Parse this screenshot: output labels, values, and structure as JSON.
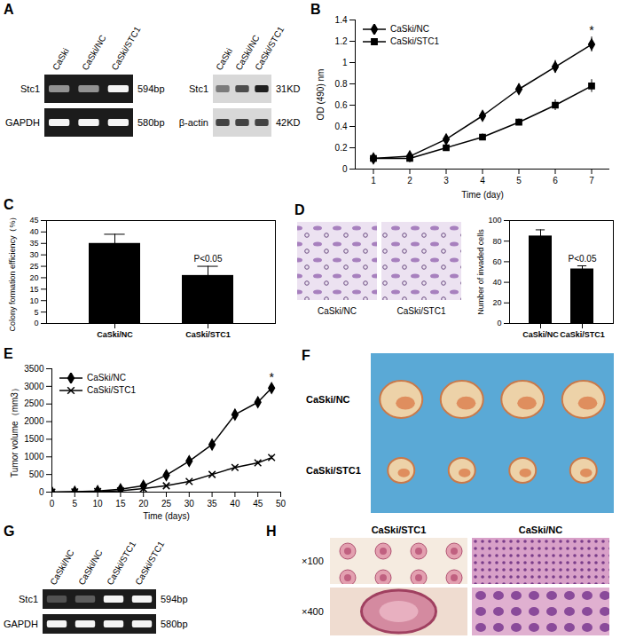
{
  "chart_data": [
    {
      "panel": "B",
      "type": "line",
      "x": [
        1,
        2,
        3,
        4,
        5,
        6,
        7
      ],
      "series": [
        {
          "name": "CaSki/NC",
          "color": "#000000",
          "marker": "diamond",
          "values": [
            0.1,
            0.12,
            0.28,
            0.5,
            0.75,
            0.96,
            1.17
          ],
          "errors": [
            0.01,
            0.02,
            0.03,
            0.04,
            0.05,
            0.06,
            0.07
          ]
        },
        {
          "name": "CaSki/STC1",
          "color": "#000000",
          "marker": "square",
          "values": [
            0.1,
            0.1,
            0.2,
            0.3,
            0.44,
            0.6,
            0.78
          ],
          "errors": [
            0.01,
            0.02,
            0.02,
            0.03,
            0.03,
            0.05,
            0.06
          ]
        }
      ],
      "xlabel": "Time (day)",
      "ylabel": "OD (490) nm",
      "xlim": [
        0.5,
        7.5
      ],
      "xticks": [
        1,
        2,
        3,
        4,
        5,
        6,
        7
      ],
      "ylim": [
        0,
        1.4
      ],
      "yticks": [
        0,
        0.2,
        0.4,
        0.6,
        0.8,
        1,
        1.2,
        1.4
      ],
      "legend": "upper left",
      "annotations": [
        {
          "text": "*",
          "x": 7
        }
      ]
    },
    {
      "panel": "C",
      "type": "bar",
      "categories": [
        "CaSki/NC",
        "CaSki/STC1"
      ],
      "values": [
        35,
        21
      ],
      "errors": [
        4,
        4
      ],
      "color": "#000000",
      "ylabel": "Colony formation efficiency（%）",
      "ylim": [
        0,
        45
      ],
      "yticks": [
        0,
        5,
        10,
        15,
        20,
        25,
        30,
        35,
        40,
        45
      ],
      "annotations": [
        {
          "text": "P<0.05",
          "category": "CaSki/STC1"
        }
      ]
    },
    {
      "panel": "D",
      "type": "bar",
      "images": [
        "CaSki/NC",
        "CaSki/STC1"
      ],
      "categories": [
        "CaSki/NC",
        "CaSki/STC1"
      ],
      "values": [
        85,
        53
      ],
      "errors": [
        6,
        3
      ],
      "color": "#000000",
      "ylabel": "Number of invaded cells",
      "ylim": [
        0,
        100
      ],
      "yticks": [
        0,
        20,
        40,
        60,
        80,
        100
      ],
      "annotations": [
        {
          "text": "P<0.05",
          "category": "CaSki/STC1"
        }
      ]
    },
    {
      "panel": "E",
      "type": "line",
      "x": [
        0,
        5,
        10,
        15,
        20,
        25,
        30,
        35,
        40,
        45,
        48
      ],
      "series": [
        {
          "name": "CaSki/NC",
          "color": "#000000",
          "marker": "diamond",
          "values": [
            0,
            10,
            30,
            80,
            180,
            480,
            880,
            1350,
            2200,
            2550,
            2950
          ],
          "errors": [
            0,
            0,
            0,
            0,
            0,
            30,
            60,
            70,
            130,
            150,
            120
          ]
        },
        {
          "name": "CaSki/STC1",
          "color": "#000000",
          "marker": "times",
          "values": [
            0,
            5,
            15,
            40,
            100,
            180,
            300,
            500,
            700,
            830,
            980
          ],
          "errors": [
            0,
            0,
            0,
            0,
            0,
            10,
            20,
            30,
            40,
            50,
            60
          ]
        }
      ],
      "xlabel": "Time (days)",
      "ylabel": "Tumor volume（mm3）",
      "xlim": [
        0,
        50
      ],
      "xticks": [
        0,
        5,
        10,
        15,
        20,
        25,
        30,
        35,
        40,
        45,
        50
      ],
      "ylim": [
        0,
        3500
      ],
      "yticks": [
        0,
        500,
        1000,
        1500,
        2000,
        2500,
        3000,
        3500
      ],
      "legend": "upper left",
      "annotations": [
        {
          "text": "*",
          "x": 48
        }
      ]
    }
  ],
  "panels": {
    "A": {
      "panel": "A",
      "gels": [
        {
          "color": "#1c1c1c",
          "lanes": [
            "CaSki",
            "CaSki/NC",
            "CaSki/STC1"
          ],
          "rows": [
            {
              "name": "Stc1",
              "size": "594bp",
              "intensity": [
                0.55,
                0.55,
                1
              ]
            },
            {
              "name": "GAPDH",
              "size": "580bp",
              "intensity": [
                1,
                1,
                1
              ]
            }
          ]
        },
        {
          "color": "#d8d8d8",
          "lanes": [
            "CaSki",
            "CaSki/NC",
            "CaSki/STC1"
          ],
          "rows": [
            {
              "name": "Stc1",
              "size": "31KD",
              "intensity": [
                0.5,
                0.75,
                1
              ]
            },
            {
              "name": "β-actin",
              "size": "42KD",
              "intensity": [
                0.8,
                0.8,
                0.8
              ]
            }
          ]
        }
      ]
    },
    "F": {
      "panel": "F",
      "color": "#5aa9d6",
      "rows": [
        {
          "label": "CaSki/NC",
          "tumor_count": 4
        },
        {
          "label": "CaSki/STC1",
          "tumor_count": 4
        }
      ]
    },
    "G": {
      "panel": "G",
      "gels": [
        {
          "color": "#1c1c1c",
          "lanes": [
            "CaSki/NC",
            "CaSki/NC",
            "CaSki/STC1",
            "CaSki/STC1"
          ],
          "rows": [
            {
              "name": "Stc1",
              "size": "594bp",
              "intensity": [
                0.25,
                0.3,
                1,
                1
              ]
            },
            {
              "name": "GAPDH",
              "size": "580bp",
              "intensity": [
                1,
                1,
                1,
                1
              ]
            }
          ]
        }
      ]
    },
    "H": {
      "panel": "H",
      "columns": [
        "CaSki/STC1",
        "CaSki/NC"
      ],
      "rows": [
        "×100",
        "×400"
      ]
    }
  }
}
